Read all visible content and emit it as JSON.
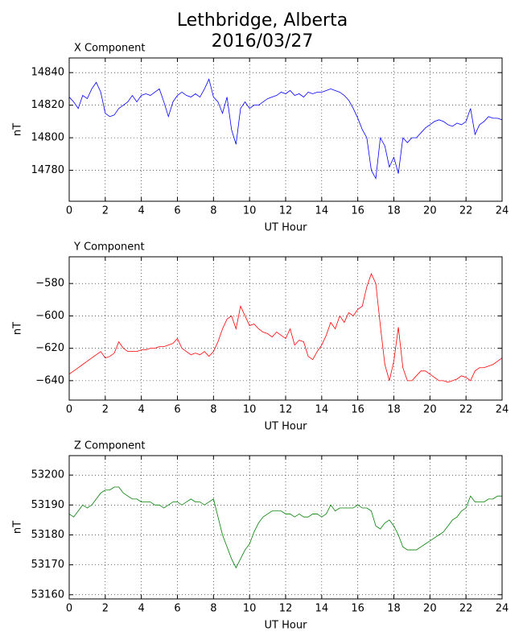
{
  "title": [
    "Lethbridge, Alberta",
    "2016/03/27"
  ],
  "chart_data": [
    {
      "type": "line",
      "title": "X Component",
      "xlabel": "UT Hour",
      "ylabel": "nT",
      "grid": true,
      "xlim": [
        0,
        24
      ],
      "xticks": [
        0,
        2,
        4,
        6,
        8,
        10,
        12,
        14,
        16,
        18,
        20,
        22,
        24
      ],
      "ylim": [
        14761,
        14849
      ],
      "yticks": [
        14780,
        14800,
        14820,
        14840
      ],
      "x": [
        0,
        0.25,
        0.5,
        0.75,
        1,
        1.25,
        1.5,
        1.75,
        2,
        2.25,
        2.5,
        2.75,
        3,
        3.25,
        3.5,
        3.75,
        4,
        4.25,
        4.5,
        4.75,
        5,
        5.25,
        5.5,
        5.75,
        6,
        6.25,
        6.5,
        6.75,
        7,
        7.25,
        7.5,
        7.75,
        8,
        8.25,
        8.5,
        8.75,
        9,
        9.25,
        9.5,
        9.75,
        10,
        10.25,
        10.5,
        10.75,
        11,
        11.25,
        11.5,
        11.75,
        12,
        12.25,
        12.5,
        12.75,
        13,
        13.25,
        13.5,
        13.75,
        14,
        14.25,
        14.5,
        14.75,
        15,
        15.25,
        15.5,
        15.75,
        16,
        16.25,
        16.5,
        16.75,
        17,
        17.25,
        17.5,
        17.75,
        18,
        18.25,
        18.5,
        18.75,
        19,
        19.25,
        19.5,
        19.75,
        20,
        20.25,
        20.5,
        20.75,
        21,
        21.25,
        21.5,
        21.75,
        22,
        22.25,
        22.5,
        22.75,
        23,
        23.25,
        23.5,
        23.75,
        24
      ],
      "series": [
        {
          "name": "X",
          "color": "#0000ff",
          "values": [
            14825,
            14822,
            14818,
            14826,
            14824,
            14830,
            14834,
            14828,
            14815,
            14813,
            14814,
            14818,
            14820,
            14822,
            14826,
            14822,
            14826,
            14827,
            14826,
            14828,
            14830,
            14822,
            14813,
            14822,
            14826,
            14828,
            14826,
            14825,
            14827,
            14825,
            14830,
            14836,
            14825,
            14822,
            14815,
            14825,
            14805,
            14796,
            14818,
            14822,
            14818,
            14820,
            14820,
            14822,
            14824,
            14825,
            14826,
            14828,
            14827,
            14829,
            14826,
            14827,
            14825,
            14828,
            14827,
            14828,
            14828,
            14829,
            14830,
            14829,
            14828,
            14826,
            14823,
            14818,
            14812,
            14805,
            14800,
            14780,
            14775,
            14800,
            14795,
            14782,
            14788,
            14778,
            14800,
            14797,
            14800,
            14800,
            14803,
            14806,
            14808,
            14810,
            14811,
            14810,
            14808,
            14807,
            14809,
            14808,
            14810,
            14818,
            14802,
            14808,
            14810,
            14813,
            14812,
            14812,
            14811
          ]
        }
      ]
    },
    {
      "type": "line",
      "title": "Y Component",
      "xlabel": "UT Hour",
      "ylabel": "nT",
      "grid": true,
      "xlim": [
        0,
        24
      ],
      "xticks": [
        0,
        2,
        4,
        6,
        8,
        10,
        12,
        14,
        16,
        18,
        20,
        22,
        24
      ],
      "ylim": [
        -652,
        -563.5
      ],
      "yticks": [
        {
          "value": -640,
          "label": "−640"
        },
        {
          "value": -620,
          "label": "−620"
        },
        {
          "value": -600,
          "label": "−600"
        },
        {
          "value": -580,
          "label": "−580"
        }
      ],
      "x": [
        0,
        0.25,
        0.5,
        0.75,
        1,
        1.25,
        1.5,
        1.75,
        2,
        2.25,
        2.5,
        2.75,
        3,
        3.25,
        3.5,
        3.75,
        4,
        4.25,
        4.5,
        4.75,
        5,
        5.25,
        5.5,
        5.75,
        6,
        6.25,
        6.5,
        6.75,
        7,
        7.25,
        7.5,
        7.75,
        8,
        8.25,
        8.5,
        8.75,
        9,
        9.25,
        9.5,
        9.75,
        10,
        10.25,
        10.5,
        10.75,
        11,
        11.25,
        11.5,
        11.75,
        12,
        12.25,
        12.5,
        12.75,
        13,
        13.25,
        13.5,
        13.75,
        14,
        14.25,
        14.5,
        14.75,
        15,
        15.25,
        15.5,
        15.75,
        16,
        16.25,
        16.5,
        16.75,
        17,
        17.25,
        17.5,
        17.75,
        18,
        18.25,
        18.5,
        18.75,
        19,
        19.25,
        19.5,
        19.75,
        20,
        20.25,
        20.5,
        20.75,
        21,
        21.25,
        21.5,
        21.75,
        22,
        22.25,
        22.5,
        22.75,
        23,
        23.25,
        23.5,
        23.75,
        24
      ],
      "series": [
        {
          "name": "Y",
          "color": "#ff0000",
          "values": [
            -636,
            -634,
            -632,
            -630,
            -628,
            -626,
            -624,
            -622,
            -626,
            -625,
            -623,
            -616,
            -620,
            -622,
            -622,
            -622,
            -621,
            -621,
            -620,
            -620,
            -619,
            -619,
            -618,
            -617,
            -614,
            -620,
            -622,
            -624,
            -623,
            -624,
            -622,
            -625,
            -622,
            -616,
            -608,
            -602,
            -600,
            -608,
            -594,
            -600,
            -606,
            -605,
            -608,
            -610,
            -611,
            -613,
            -610,
            -612,
            -614,
            -608,
            -618,
            -615,
            -616,
            -625,
            -627,
            -622,
            -618,
            -612,
            -604,
            -608,
            -600,
            -604,
            -598,
            -600,
            -596,
            -594,
            -582,
            -574,
            -580,
            -606,
            -630,
            -640,
            -628,
            -607,
            -632,
            -640,
            -640,
            -637,
            -634,
            -634,
            -636,
            -638,
            -640,
            -640,
            -641,
            -640,
            -639,
            -637,
            -638,
            -640,
            -634,
            -632,
            -632,
            -631,
            -630,
            -628,
            -626
          ]
        }
      ]
    },
    {
      "type": "line",
      "title": "Z Component",
      "xlabel": "UT Hour",
      "ylabel": "nT",
      "grid": true,
      "xlim": [
        0,
        24
      ],
      "xticks": [
        0,
        2,
        4,
        6,
        8,
        10,
        12,
        14,
        16,
        18,
        20,
        22,
        24
      ],
      "ylim": [
        53158.6,
        53206.5
      ],
      "yticks": [
        53160,
        53170,
        53180,
        53190,
        53200
      ],
      "x": [
        0,
        0.25,
        0.5,
        0.75,
        1,
        1.25,
        1.5,
        1.75,
        2,
        2.25,
        2.5,
        2.75,
        3,
        3.25,
        3.5,
        3.75,
        4,
        4.25,
        4.5,
        4.75,
        5,
        5.25,
        5.5,
        5.75,
        6,
        6.25,
        6.5,
        6.75,
        7,
        7.25,
        7.5,
        7.75,
        8,
        8.25,
        8.5,
        8.75,
        9,
        9.25,
        9.5,
        9.75,
        10,
        10.25,
        10.5,
        10.75,
        11,
        11.25,
        11.5,
        11.75,
        12,
        12.25,
        12.5,
        12.75,
        13,
        13.25,
        13.5,
        13.75,
        14,
        14.25,
        14.5,
        14.75,
        15,
        15.25,
        15.5,
        15.75,
        16,
        16.25,
        16.5,
        16.75,
        17,
        17.25,
        17.5,
        17.75,
        18,
        18.25,
        18.5,
        18.75,
        19,
        19.25,
        19.5,
        19.75,
        20,
        20.25,
        20.5,
        20.75,
        21,
        21.25,
        21.5,
        21.75,
        22,
        22.25,
        22.5,
        22.75,
        23,
        23.25,
        23.5,
        23.75,
        24
      ],
      "series": [
        {
          "name": "Z",
          "color": "#008000",
          "values": [
            53187,
            53186,
            53188,
            53190,
            53189,
            53190,
            53192,
            53194,
            53195,
            53195,
            53196,
            53196,
            53194,
            53193,
            53192,
            53192,
            53191,
            53191,
            53191,
            53190,
            53190,
            53189,
            53190,
            53191,
            53191,
            53190,
            53191,
            53192,
            53191,
            53191,
            53190,
            53191,
            53192,
            53186,
            53180,
            53176,
            53172,
            53169,
            53172,
            53175,
            53177,
            53181,
            53184,
            53186,
            53187,
            53188,
            53188,
            53188,
            53187,
            53187,
            53186,
            53187,
            53186,
            53186,
            53187,
            53187,
            53186,
            53187,
            53190,
            53188,
            53189,
            53189,
            53189,
            53189,
            53190,
            53189,
            53189,
            53188,
            53183,
            53182,
            53184,
            53185,
            53183,
            53180,
            53176,
            53175,
            53175,
            53175,
            53176,
            53177,
            53178,
            53179,
            53180,
            53181,
            53183,
            53185,
            53186,
            53188,
            53189,
            53193,
            53191,
            53191,
            53191,
            53192,
            53192,
            53193,
            53193
          ]
        }
      ]
    }
  ]
}
